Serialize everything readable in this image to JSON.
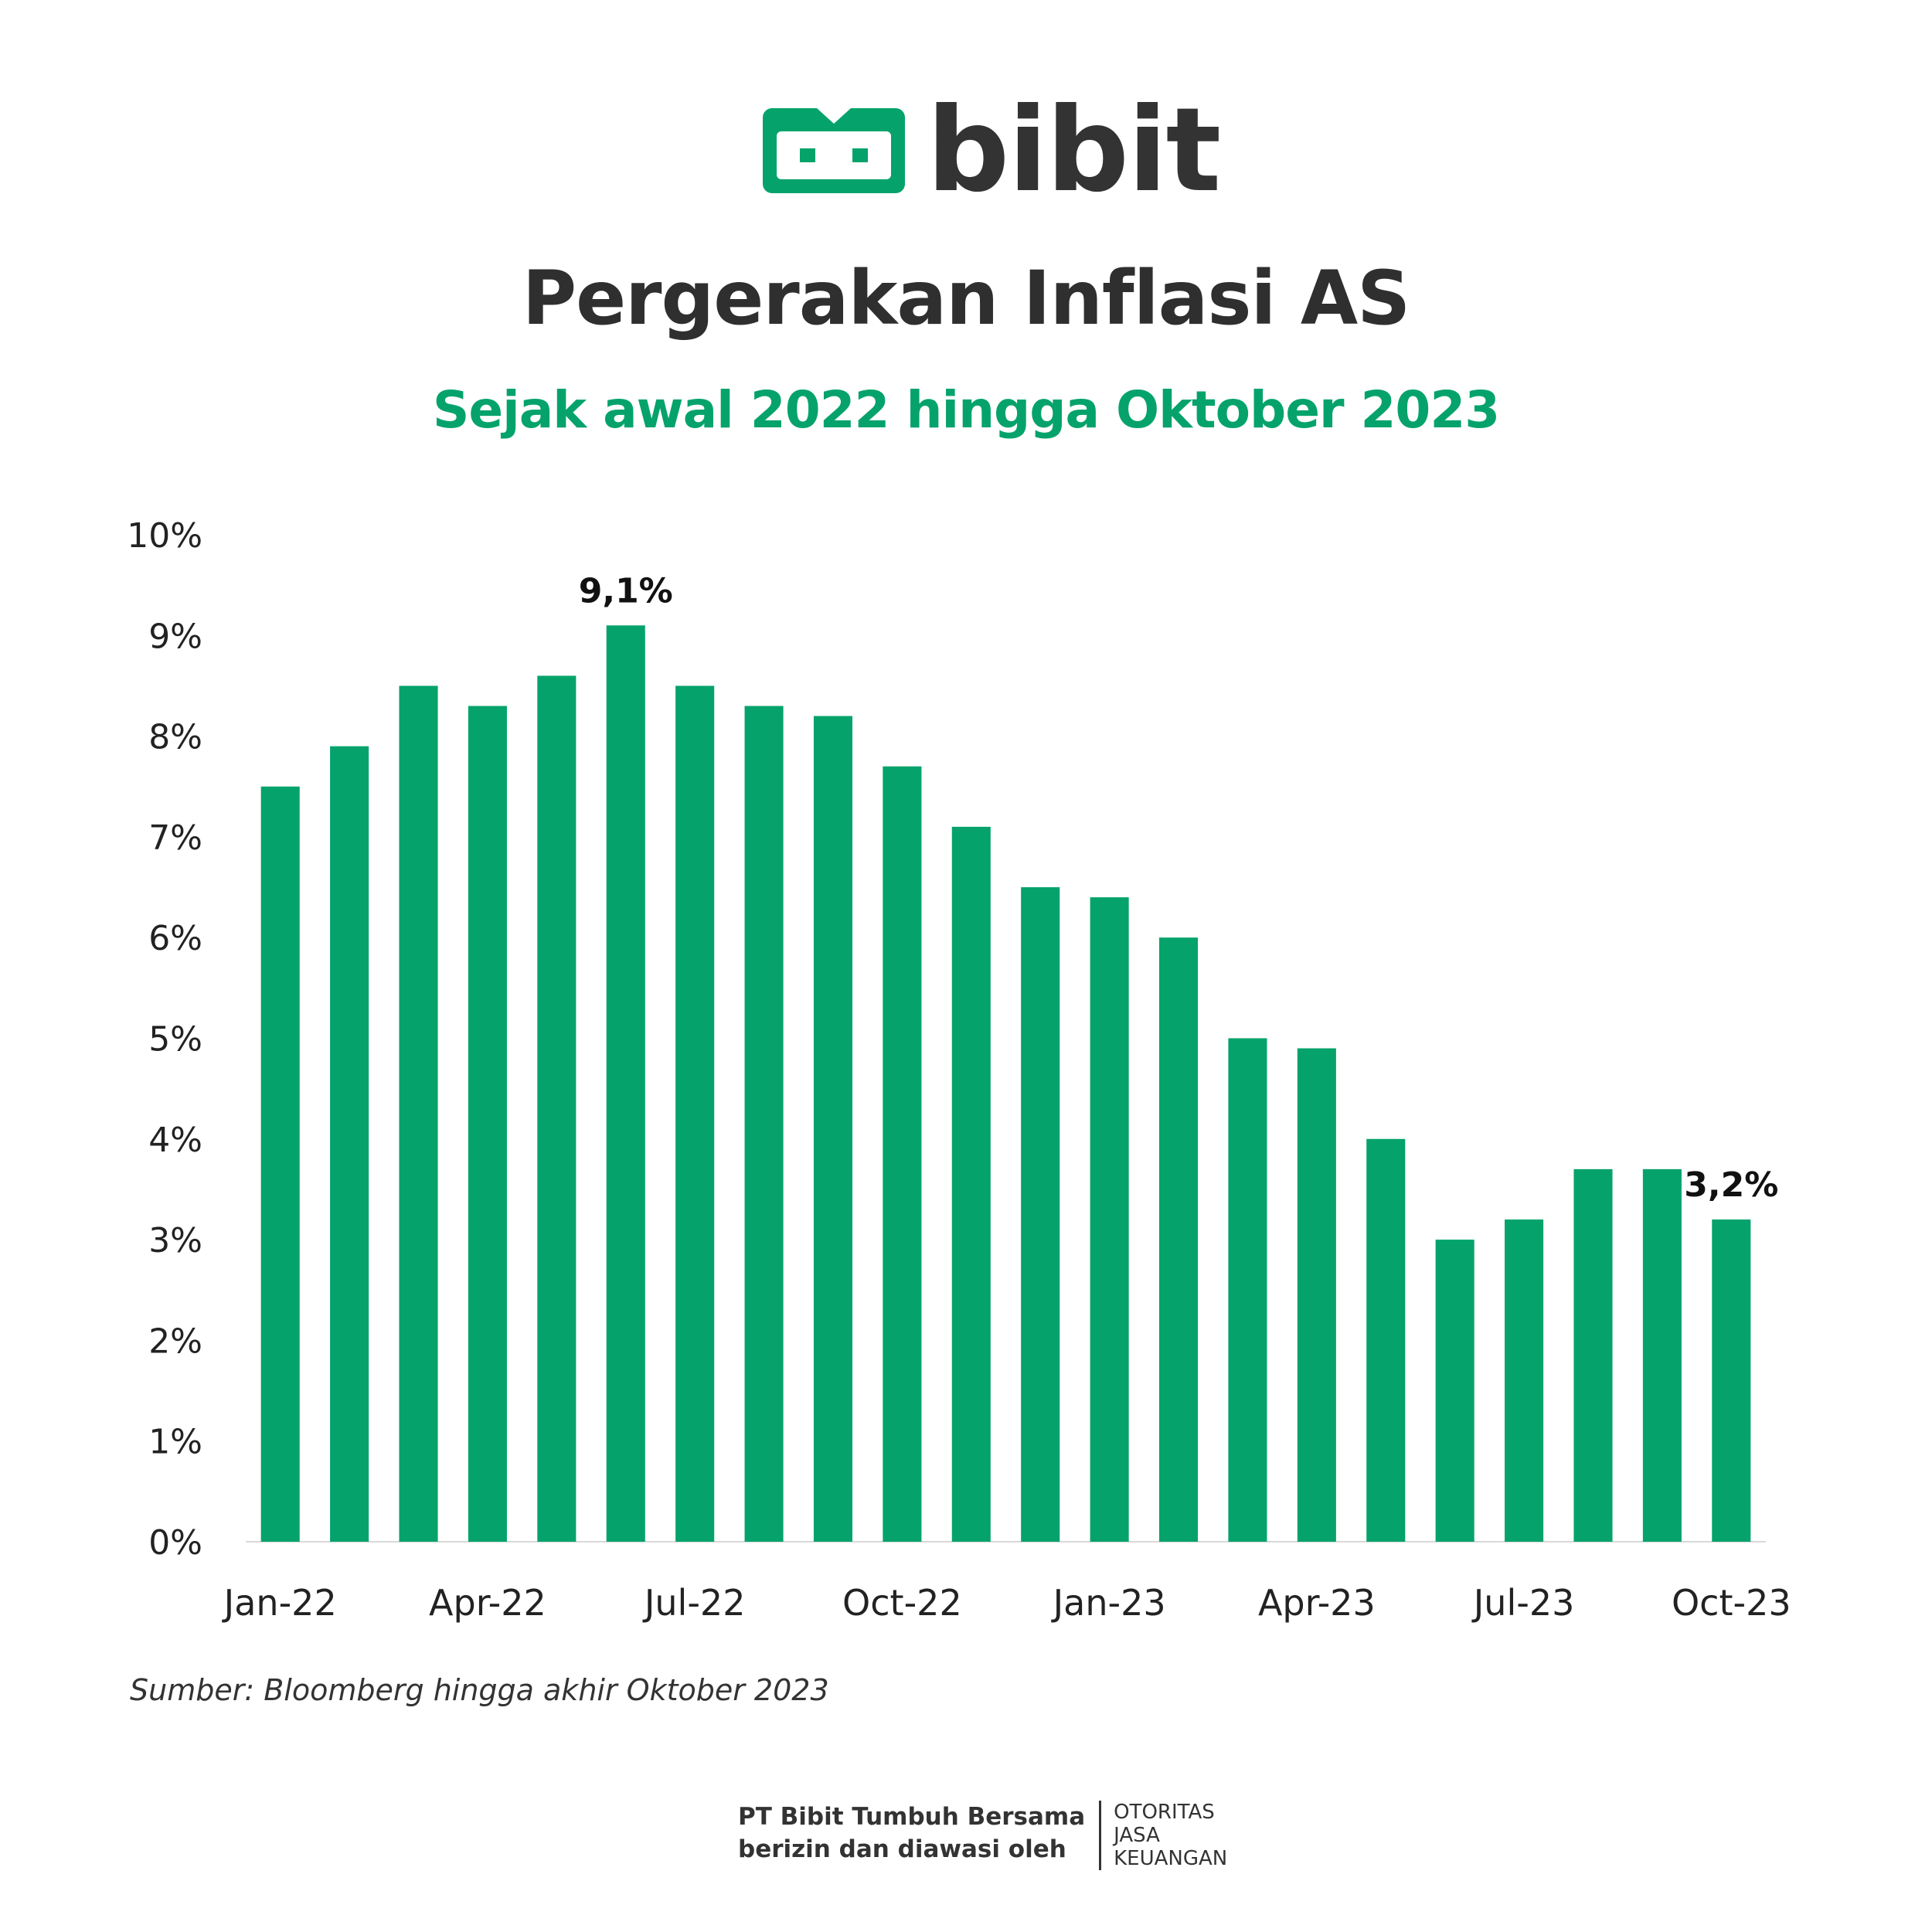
{
  "brand": {
    "name": "bibit",
    "color": "#05a36b"
  },
  "title": "Pergerakan Inflasi AS",
  "subtitle": "Sejak awal 2022 hingga Oktober 2023",
  "source": "Sumber: Bloomberg hingga akhir Oktober 2023",
  "footer": {
    "line1": "PT Bibit Tumbuh Bersama",
    "line2": "berizin dan diawasi oleh",
    "ojk": [
      "OTORITAS",
      "JASA",
      "KEUANGAN"
    ]
  },
  "chart_data": {
    "type": "bar",
    "title": "Pergerakan Inflasi AS",
    "subtitle": "Sejak awal 2022 hingga Oktober 2023",
    "xlabel": "",
    "ylabel": "",
    "ylim": [
      0,
      10
    ],
    "grid": false,
    "bar_color": "#05a36b",
    "categories": [
      "Jan-22",
      "Feb-22",
      "Mar-22",
      "Apr-22",
      "May-22",
      "Jun-22",
      "Jul-22",
      "Aug-22",
      "Sep-22",
      "Oct-22",
      "Nov-22",
      "Dec-22",
      "Jan-23",
      "Feb-23",
      "Mar-23",
      "Apr-23",
      "May-23",
      "Jun-23",
      "Jul-23",
      "Aug-23",
      "Sep-23",
      "Oct-23"
    ],
    "values": [
      7.5,
      7.9,
      8.5,
      8.3,
      8.6,
      9.1,
      8.5,
      8.3,
      8.2,
      7.7,
      7.1,
      6.5,
      6.4,
      6.0,
      5.0,
      4.9,
      4.0,
      3.0,
      3.2,
      3.7,
      3.7,
      3.2
    ],
    "x_tick_labels": [
      {
        "index": 0,
        "label": "Jan-22"
      },
      {
        "index": 3,
        "label": "Apr-22"
      },
      {
        "index": 6,
        "label": "Jul-22"
      },
      {
        "index": 9,
        "label": "Oct-22"
      },
      {
        "index": 12,
        "label": "Jan-23"
      },
      {
        "index": 15,
        "label": "Apr-23"
      },
      {
        "index": 18,
        "label": "Jul-23"
      },
      {
        "index": 21,
        "label": "Oct-23"
      }
    ],
    "y_tick_labels": [
      "0%",
      "1%",
      "2%",
      "3%",
      "4%",
      "5%",
      "6%",
      "7%",
      "8%",
      "9%",
      "10%"
    ],
    "annotations": [
      {
        "index": 5,
        "label": "9,1%"
      },
      {
        "index": 21,
        "label": "3,2%"
      }
    ]
  }
}
